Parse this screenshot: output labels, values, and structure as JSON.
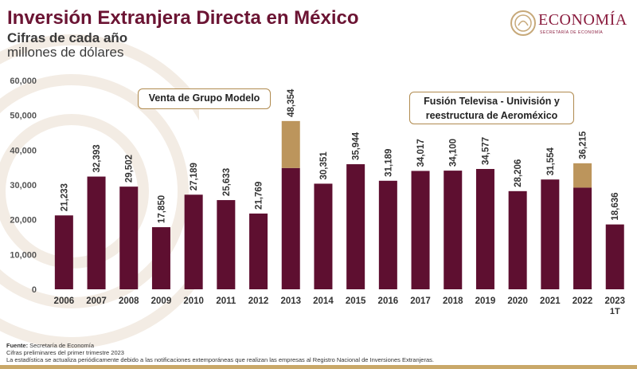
{
  "header": {
    "title": "Inversión Extranjera Directa en México",
    "subtitle": "Cifras de cada año",
    "units": "millones de dólares"
  },
  "logo": {
    "name": "ECONOMÍA",
    "sub": "SECRETARÍA DE ECONOMÍA"
  },
  "annotations": {
    "grupo_modelo": "Venta de Grupo Modelo",
    "televisa_line1": "Fusión Televisa - Univisión y",
    "televisa_line2": "reestructura de Aeroméxico"
  },
  "footer": {
    "source_label": "Fuente:",
    "source": " Secretaría de Economía",
    "note1": "Cifras preliminares del primer trimestre 2023",
    "note2": "La estadística se actualiza periódicamente debido a las notificaciones extemporáneas que realizan las empresas al Registro Nacional de Inversiones Extranjeras."
  },
  "colors": {
    "primary": "#5e0f30",
    "highlight": "#bc955c",
    "title": "#6b1433"
  },
  "chart_data": {
    "type": "bar",
    "stacked": true,
    "categories": [
      "2006",
      "2007",
      "2008",
      "2009",
      "2010",
      "2011",
      "2012",
      "2013",
      "2014",
      "2015",
      "2016",
      "2017",
      "2018",
      "2019",
      "2020",
      "2021",
      "2022",
      "2023"
    ],
    "category_sublabels": [
      "",
      "",
      "",
      "",
      "",
      "",
      "",
      "",
      "",
      "",
      "",
      "",
      "",
      "",
      "",
      "",
      "",
      "1T"
    ],
    "series": [
      {
        "values": [
          21233,
          32393,
          29502,
          17850,
          27189,
          25633,
          21769,
          34854,
          30351,
          35944,
          31189,
          34017,
          34100,
          34577,
          28206,
          31554,
          29215,
          18636
        ]
      },
      {
        "values": [
          0,
          0,
          0,
          0,
          0,
          0,
          0,
          13500,
          0,
          0,
          0,
          0,
          0,
          0,
          0,
          0,
          7000,
          0
        ]
      }
    ],
    "data_labels": [
      "21,233",
      "32,393",
      "29,502",
      "17,850",
      "27,189",
      "25,633",
      "21,769",
      "48,354",
      "30,351",
      "35,944",
      "31,189",
      "34,017",
      "34,100",
      "34,577",
      "28,206",
      "31,554",
      "36,215",
      "18,636"
    ],
    "y_ticks": [
      "0",
      "10,000",
      "20,000",
      "30,000",
      "40,000",
      "50,000",
      "60,000"
    ],
    "ylim": [
      0,
      60000
    ],
    "grid": false
  }
}
